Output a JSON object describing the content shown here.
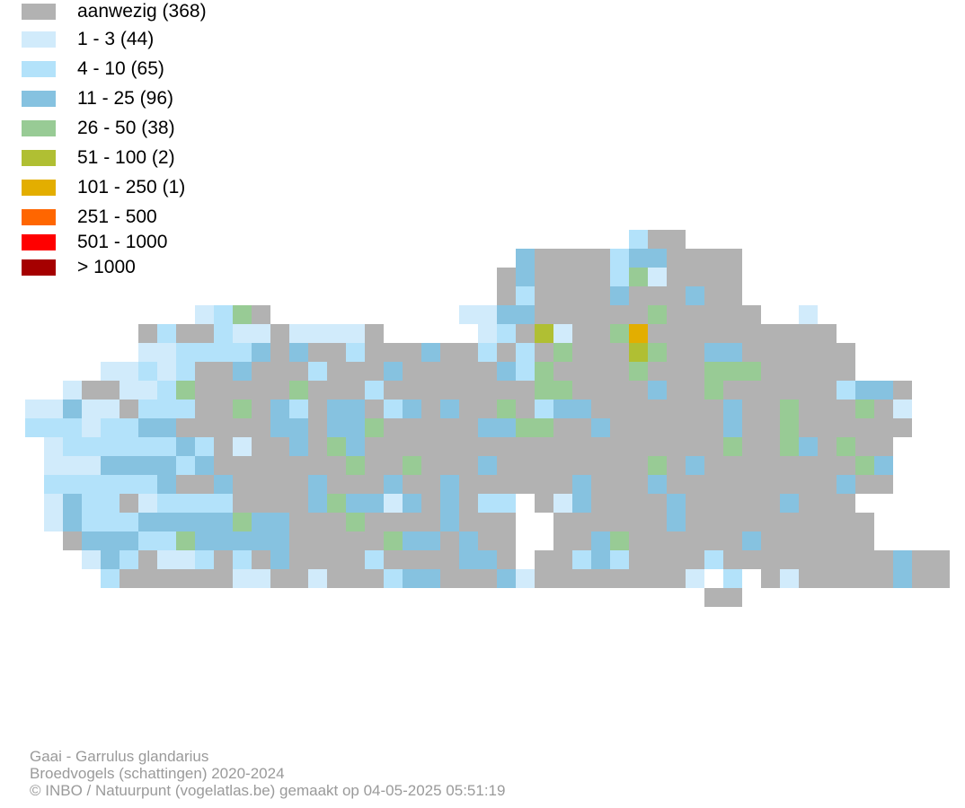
{
  "legend": [
    {
      "label": "aanwezig (368)",
      "color": "#b2b2b2"
    },
    {
      "label": "1 - 3 (44)",
      "color": "#d1ebfb"
    },
    {
      "label": "4 - 10 (65)",
      "color": "#b3e2fa"
    },
    {
      "label": "11 - 25 (96)",
      "color": "#86c2e0"
    },
    {
      "label": "26 - 50 (38)",
      "color": "#98cb95"
    },
    {
      "label": "51 - 100 (2)",
      "color": "#b0bf33"
    },
    {
      "label": "101 - 250 (1)",
      "color": "#e3ae00"
    },
    {
      "label": "251 - 500",
      "color": "#ff6600"
    },
    {
      "label": "501 - 1000",
      "color": "#ff0000"
    },
    {
      "label": "> 1000",
      "color": "#a50000"
    }
  ],
  "footer": {
    "species": "Gaai - Garrulus glandarius",
    "dataset": "Broedvogels (schattingen) 2020-2024",
    "credit": "© INBO / Natuurpunt (vogelatlas.be) gemaakt op 04-05-2025 05:51:19"
  }
}
